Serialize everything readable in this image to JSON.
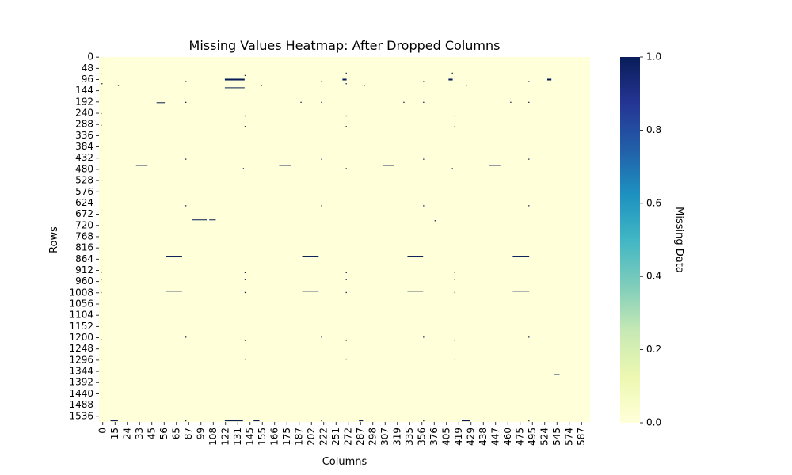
{
  "chart_data": {
    "type": "heatmap",
    "title": "Missing Values Heatmap: After Dropped Columns",
    "xlabel": "Columns",
    "ylabel": "Rows",
    "colorbar_label": "Missing Data",
    "colormap": "YlGnBu",
    "colorbar_range": [
      0,
      1
    ],
    "colorbar_ticks": [
      "0.0",
      "0.2",
      "0.4",
      "0.6",
      "0.8",
      "1.0"
    ],
    "colors": {
      "low": "#ffffd9",
      "high": "#081d58"
    },
    "x_tick_labels": [
      "0",
      "15",
      "24",
      "33",
      "45",
      "56",
      "65",
      "87",
      "99",
      "108",
      "122",
      "131",
      "145",
      "155",
      "166",
      "175",
      "187",
      "202",
      "222",
      "251",
      "272",
      "287",
      "298",
      "307",
      "319",
      "335",
      "356",
      "376",
      "405",
      "419",
      "429",
      "438",
      "447",
      "460",
      "475",
      "495",
      "524",
      "545",
      "574",
      "587"
    ],
    "y_tick_labels": [
      "0",
      "48",
      "96",
      "144",
      "192",
      "240",
      "288",
      "336",
      "384",
      "432",
      "480",
      "528",
      "576",
      "624",
      "672",
      "720",
      "768",
      "816",
      "864",
      "912",
      "960",
      "1008",
      "1056",
      "1104",
      "1152",
      "1200",
      "1248",
      "1296",
      "1344",
      "1392",
      "1440",
      "1488",
      "1536"
    ],
    "n_rows": 1561,
    "n_cols": 597,
    "missing_segments": [
      {
        "col_start": 153,
        "col_end": 177,
        "row_start": 93,
        "row_end": 100
      },
      {
        "col_start": 153,
        "col_end": 177,
        "row_start": 130,
        "row_end": 133
      },
      {
        "col_start": 296,
        "col_end": 301,
        "row_start": 93,
        "row_end": 100
      },
      {
        "col_start": 425,
        "col_end": 430,
        "row_start": 93,
        "row_end": 100
      },
      {
        "col_start": 545,
        "col_end": 550,
        "row_start": 93,
        "row_end": 100
      },
      {
        "col_start": 70,
        "col_end": 80,
        "row_start": 194,
        "row_end": 197
      },
      {
        "col_start": 45,
        "col_end": 59,
        "row_start": 462,
        "row_end": 465
      },
      {
        "col_start": 219,
        "col_end": 233,
        "row_start": 462,
        "row_end": 465
      },
      {
        "col_start": 345,
        "col_end": 359,
        "row_start": 462,
        "row_end": 465
      },
      {
        "col_start": 474,
        "col_end": 488,
        "row_start": 462,
        "row_end": 465
      },
      {
        "col_start": 113,
        "col_end": 131,
        "row_start": 695,
        "row_end": 698
      },
      {
        "col_start": 134,
        "col_end": 142,
        "row_start": 695,
        "row_end": 698
      },
      {
        "col_start": 81,
        "col_end": 101,
        "row_start": 850,
        "row_end": 853
      },
      {
        "col_start": 247,
        "col_end": 267,
        "row_start": 850,
        "row_end": 853
      },
      {
        "col_start": 375,
        "col_end": 394,
        "row_start": 850,
        "row_end": 853
      },
      {
        "col_start": 503,
        "col_end": 523,
        "row_start": 850,
        "row_end": 853
      },
      {
        "col_start": 81,
        "col_end": 101,
        "row_start": 1000,
        "row_end": 1003
      },
      {
        "col_start": 247,
        "col_end": 267,
        "row_start": 1000,
        "row_end": 1003
      },
      {
        "col_start": 375,
        "col_end": 394,
        "row_start": 1000,
        "row_end": 1003
      },
      {
        "col_start": 503,
        "col_end": 523,
        "row_start": 1000,
        "row_end": 1003
      },
      {
        "col_start": 553,
        "col_end": 560,
        "row_start": 1356,
        "row_end": 1359
      },
      {
        "col_start": 14,
        "col_end": 23,
        "row_start": 1554,
        "row_end": 1558
      },
      {
        "col_start": 153,
        "col_end": 175,
        "row_start": 1554,
        "row_end": 1558
      },
      {
        "col_start": 188,
        "col_end": 195,
        "row_start": 1554,
        "row_end": 1558
      },
      {
        "col_start": 316,
        "col_end": 321,
        "row_start": 1554,
        "row_end": 1558
      },
      {
        "col_start": 441,
        "col_end": 451,
        "row_start": 1554,
        "row_end": 1558
      }
    ],
    "missing_points": [
      {
        "col": 2,
        "row": 70
      },
      {
        "col": 3,
        "row": 112
      },
      {
        "col": 23,
        "row": 120
      },
      {
        "col": 105,
        "row": 103
      },
      {
        "col": 177,
        "row": 77
      },
      {
        "col": 197,
        "row": 120
      },
      {
        "col": 270,
        "row": 103
      },
      {
        "col": 300,
        "row": 67
      },
      {
        "col": 300,
        "row": 112
      },
      {
        "col": 322,
        "row": 120
      },
      {
        "col": 394,
        "row": 103
      },
      {
        "col": 429,
        "row": 67
      },
      {
        "col": 446,
        "row": 120
      },
      {
        "col": 522,
        "row": 103
      },
      {
        "col": 105,
        "row": 192
      },
      {
        "col": 245,
        "row": 192
      },
      {
        "col": 270,
        "row": 192
      },
      {
        "col": 370,
        "row": 192
      },
      {
        "col": 394,
        "row": 192
      },
      {
        "col": 500,
        "row": 192
      },
      {
        "col": 522,
        "row": 192
      },
      {
        "col": 2,
        "row": 240
      },
      {
        "col": 177,
        "row": 250
      },
      {
        "col": 300,
        "row": 250
      },
      {
        "col": 432,
        "row": 250
      },
      {
        "col": 2,
        "row": 290
      },
      {
        "col": 177,
        "row": 295
      },
      {
        "col": 300,
        "row": 295
      },
      {
        "col": 432,
        "row": 295
      },
      {
        "col": 105,
        "row": 435
      },
      {
        "col": 270,
        "row": 435
      },
      {
        "col": 394,
        "row": 435
      },
      {
        "col": 522,
        "row": 435
      },
      {
        "col": 175,
        "row": 475
      },
      {
        "col": 300,
        "row": 475
      },
      {
        "col": 429,
        "row": 475
      },
      {
        "col": 105,
        "row": 634
      },
      {
        "col": 270,
        "row": 634
      },
      {
        "col": 394,
        "row": 634
      },
      {
        "col": 522,
        "row": 634
      },
      {
        "col": 408,
        "row": 698
      },
      {
        "col": 2,
        "row": 920
      },
      {
        "col": 177,
        "row": 920
      },
      {
        "col": 300,
        "row": 920
      },
      {
        "col": 432,
        "row": 920
      },
      {
        "col": 2,
        "row": 950
      },
      {
        "col": 177,
        "row": 950
      },
      {
        "col": 300,
        "row": 950
      },
      {
        "col": 432,
        "row": 950
      },
      {
        "col": 2,
        "row": 1005
      },
      {
        "col": 177,
        "row": 1005
      },
      {
        "col": 300,
        "row": 1005
      },
      {
        "col": 432,
        "row": 1005
      },
      {
        "col": 105,
        "row": 1196
      },
      {
        "col": 270,
        "row": 1196
      },
      {
        "col": 394,
        "row": 1196
      },
      {
        "col": 522,
        "row": 1196
      },
      {
        "col": 2,
        "row": 1206
      },
      {
        "col": 177,
        "row": 1210
      },
      {
        "col": 300,
        "row": 1210
      },
      {
        "col": 432,
        "row": 1210
      },
      {
        "col": 2,
        "row": 1290
      },
      {
        "col": 177,
        "row": 1290
      },
      {
        "col": 300,
        "row": 1290
      },
      {
        "col": 432,
        "row": 1290
      },
      {
        "col": 105,
        "row": 1554
      },
      {
        "col": 270,
        "row": 1554
      },
      {
        "col": 394,
        "row": 1554
      },
      {
        "col": 522,
        "row": 1554
      }
    ]
  }
}
